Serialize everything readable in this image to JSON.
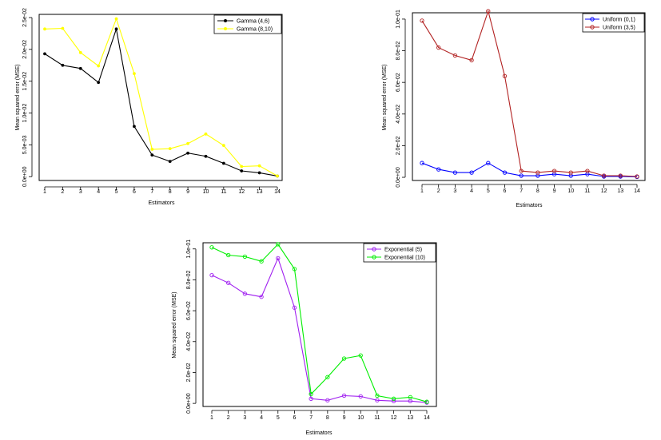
{
  "chart_data": [
    {
      "id": "p1",
      "type": "line",
      "xlabel": "Estimators",
      "ylabel": "Mean squared error (MSE)",
      "x": [
        1,
        2,
        3,
        4,
        5,
        6,
        7,
        8,
        9,
        10,
        11,
        12,
        13,
        14
      ],
      "xticks": [
        "1",
        "2",
        "3",
        "4",
        "5",
        "6",
        "7",
        "8",
        "9",
        "10",
        "11",
        "12",
        "13",
        "14"
      ],
      "ylim": [
        -0.0006,
        0.0255
      ],
      "yticks": [
        0,
        0.005,
        0.01,
        0.015,
        0.02,
        0.025
      ],
      "yticklabels": [
        "0.0e+00",
        "5.0e-03",
        "1.0e-02",
        "1.5e-02",
        "2.0e-02",
        "2.5e-02"
      ],
      "legend_position": "top-right",
      "series": [
        {
          "name": "Gamma (4,6)",
          "color": "#000000",
          "marker": "filled",
          "values": [
            0.0193,
            0.0175,
            0.017,
            0.0148,
            0.0232,
            0.0079,
            0.0034,
            0.0024,
            0.0037,
            0.0032,
            0.0021,
            0.0009,
            0.0006,
            0.0001
          ]
        },
        {
          "name": "Gamma (8,10)",
          "color": "#ffff00",
          "marker": "filled",
          "values": [
            0.0232,
            0.0233,
            0.0195,
            0.0174,
            0.0248,
            0.0162,
            0.0043,
            0.0044,
            0.0052,
            0.0067,
            0.0049,
            0.0016,
            0.0017,
            0.0001
          ]
        }
      ]
    },
    {
      "id": "p2",
      "type": "line",
      "xlabel": "Estimators",
      "ylabel": "Mean squared error (MSE)",
      "x": [
        1,
        2,
        3,
        4,
        5,
        6,
        7,
        8,
        9,
        10,
        11,
        12,
        13,
        14
      ],
      "xticks": [
        "1",
        "2",
        "3",
        "4",
        "5",
        "6",
        "7",
        "8",
        "9",
        "10",
        "11",
        "12",
        "13",
        "14"
      ],
      "ylim": [
        -0.002,
        0.104
      ],
      "yticks": [
        0,
        0.02,
        0.04,
        0.06,
        0.08,
        0.1
      ],
      "yticklabels": [
        "0.0e+00",
        "2.0e-02",
        "4.0e-02",
        "6.0e-02",
        "8.0e-02",
        "1.0e-01"
      ],
      "legend_position": "top-right",
      "series": [
        {
          "name": "Uniform (0,1)",
          "color": "#0000ff",
          "marker": "open",
          "values": [
            0.009,
            0.005,
            0.003,
            0.003,
            0.009,
            0.003,
            0.001,
            0.001,
            0.002,
            0.001,
            0.002,
            0.0005,
            0.0005,
            0.0003
          ]
        },
        {
          "name": "Uniform (3,5)",
          "color": "#b22222",
          "marker": "open",
          "values": [
            0.099,
            0.082,
            0.077,
            0.074,
            0.105,
            0.064,
            0.004,
            0.003,
            0.004,
            0.003,
            0.004,
            0.001,
            0.001,
            0.0005
          ]
        }
      ]
    },
    {
      "id": "p3",
      "type": "line",
      "xlabel": "Estimators",
      "ylabel": "Mean squared error (MSE)",
      "x": [
        1,
        2,
        3,
        4,
        5,
        6,
        7,
        8,
        9,
        10,
        11,
        12,
        13,
        14
      ],
      "xticks": [
        "1",
        "2",
        "3",
        "4",
        "5",
        "6",
        "7",
        "8",
        "9",
        "10",
        "11",
        "12",
        "13",
        "14"
      ],
      "ylim": [
        -0.002,
        0.104
      ],
      "yticks": [
        0,
        0.02,
        0.04,
        0.06,
        0.08,
        0.1
      ],
      "yticklabels": [
        "0.0e+00",
        "2.0e-02",
        "4.0e-02",
        "6.0e-02",
        "8.0e-02",
        "1.0e-01"
      ],
      "legend_position": "top-right",
      "series": [
        {
          "name": "Exponential (5)",
          "color": "#a020f0",
          "marker": "open",
          "values": [
            0.083,
            0.078,
            0.071,
            0.069,
            0.094,
            0.062,
            0.003,
            0.002,
            0.005,
            0.0045,
            0.002,
            0.0015,
            0.0015,
            0.0005
          ]
        },
        {
          "name": "Exponential (10)",
          "color": "#00ee00",
          "marker": "open",
          "values": [
            0.101,
            0.096,
            0.095,
            0.092,
            0.103,
            0.087,
            0.006,
            0.017,
            0.029,
            0.031,
            0.005,
            0.003,
            0.004,
            0.001
          ]
        }
      ]
    }
  ]
}
